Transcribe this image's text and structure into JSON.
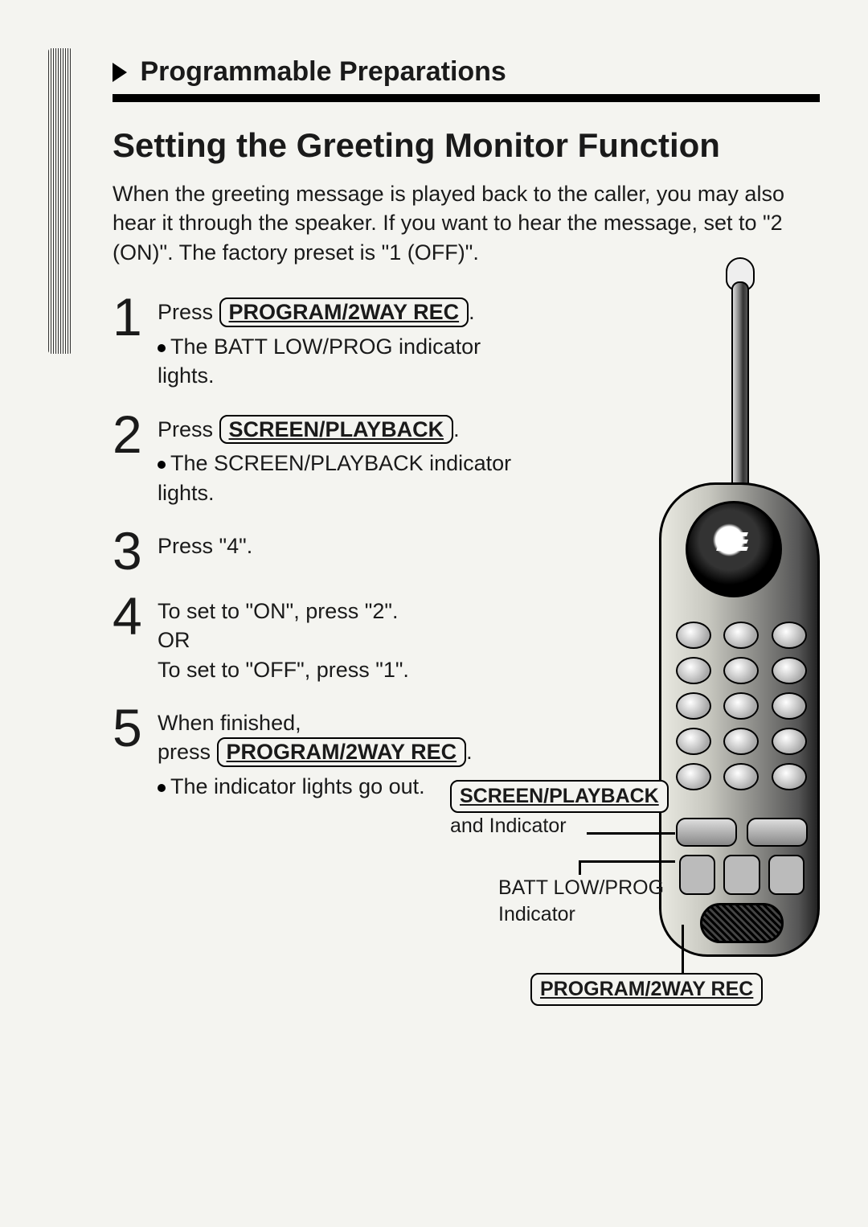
{
  "header": {
    "section_title": "Programmable Preparations"
  },
  "title": "Setting the Greeting Monitor Function",
  "intro": "When the greeting message is played back to the caller, you may also hear it through the speaker. If you want to hear the message, set to \"2 (ON)\". The factory preset is \"1 (OFF)\".",
  "buttons": {
    "program_2way_rec": "PROGRAM/2WAY REC",
    "screen_playback": "SCREEN/PLAYBACK"
  },
  "steps": [
    {
      "num": "1",
      "prefix": "Press ",
      "button_key": "program_2way_rec",
      "suffix": ".",
      "bullet": "The BATT LOW/PROG indicator lights."
    },
    {
      "num": "2",
      "prefix": "Press ",
      "button_key": "screen_playback",
      "suffix": ".",
      "bullet": "The SCREEN/PLAYBACK indicator lights."
    },
    {
      "num": "3",
      "plain": "Press \"4\"."
    },
    {
      "num": "4",
      "lines": [
        "To set to \"ON\", press \"2\".",
        "OR",
        "To set to \"OFF\", press \"1\"."
      ]
    },
    {
      "num": "5",
      "prefix": "When finished,\npress ",
      "button_key": "program_2way_rec",
      "suffix": ".",
      "bullet": "The indicator lights go out."
    }
  ],
  "callouts": {
    "screen_playback_sub": "and Indicator",
    "batt_low_prog": "BATT LOW/PROG",
    "batt_low_prog_sub": "Indicator"
  }
}
